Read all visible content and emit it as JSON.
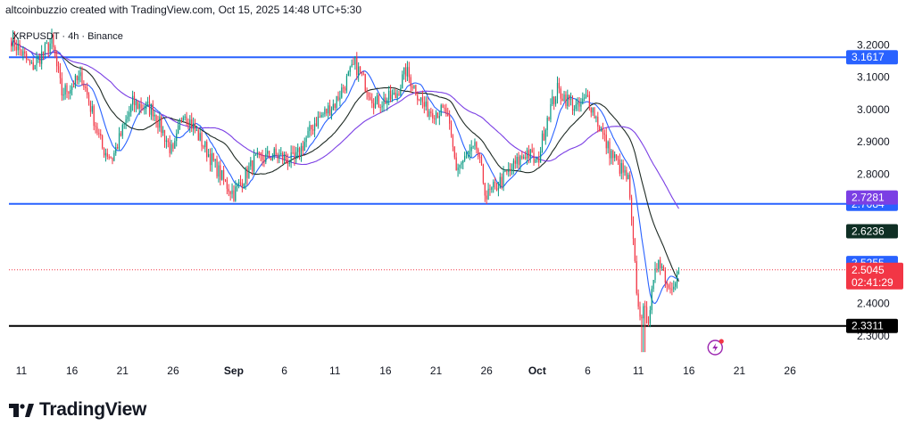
{
  "header": {
    "attribution": "altcoinbuzzio created with TradingView.com, Oct 15, 2025 14:48 UTC+5:30"
  },
  "symbol": "XRPUSDT · 4h · Binance",
  "branding": {
    "logo_text": "TradingView"
  },
  "colors": {
    "up": "#089981",
    "down": "#f23645",
    "ma_fast": "#2962ff",
    "ma_mid": "#1e2a24",
    "ma_slow": "#7b3fe4",
    "hline": "#2962ff",
    "support": "#000000",
    "last_price": "#f23645"
  },
  "chart_data": {
    "type": "candlestick",
    "ylim": [
      2.27,
      3.24
    ],
    "y_ticks": [
      "3.2000",
      "3.1000",
      "3.0000",
      "2.9000",
      "2.8000",
      "2.4000",
      "2.3000"
    ],
    "x_ticks": [
      {
        "label": "11",
        "bold": false
      },
      {
        "label": "16",
        "bold": false
      },
      {
        "label": "21",
        "bold": false
      },
      {
        "label": "26",
        "bold": false
      },
      {
        "label": "Sep",
        "bold": true
      },
      {
        "label": "6",
        "bold": false
      },
      {
        "label": "11",
        "bold": false
      },
      {
        "label": "16",
        "bold": false
      },
      {
        "label": "21",
        "bold": false
      },
      {
        "label": "26",
        "bold": false
      },
      {
        "label": "Oct",
        "bold": true
      },
      {
        "label": "6",
        "bold": false
      },
      {
        "label": "11",
        "bold": false
      },
      {
        "label": "16",
        "bold": false
      },
      {
        "label": "21",
        "bold": false
      },
      {
        "label": "26",
        "bold": false
      }
    ],
    "horizontal_lines": [
      {
        "value": 3.1617,
        "label": "3.1617",
        "style": "blue"
      },
      {
        "value": 2.7084,
        "label": "2.7084",
        "style": "blue"
      },
      {
        "value": 2.3311,
        "label": "2.3311",
        "style": "black"
      }
    ],
    "price_labels": [
      {
        "value": 2.7281,
        "label": "2.7281",
        "color": "#7b3fe4"
      },
      {
        "value": 2.6236,
        "label": "2.6236",
        "color": "#0f2f24"
      },
      {
        "value": 2.5255,
        "label": "2.5255",
        "color": "#2962ff"
      }
    ],
    "last_price": {
      "value": 2.5045,
      "label": "2.5045",
      "countdown": "02:41:29"
    },
    "price_path": [
      {
        "date": "Aug 10",
        "price": 3.22
      },
      {
        "date": "Aug 12",
        "price": 3.13
      },
      {
        "date": "Aug 14",
        "price": 3.21
      },
      {
        "date": "Aug 15",
        "price": 3.05
      },
      {
        "date": "Aug 17",
        "price": 3.1
      },
      {
        "date": "Aug 19",
        "price": 2.88
      },
      {
        "date": "Aug 20",
        "price": 2.85
      },
      {
        "date": "Aug 22",
        "price": 3.02
      },
      {
        "date": "Aug 24",
        "price": 3.0
      },
      {
        "date": "Aug 26",
        "price": 2.86
      },
      {
        "date": "Aug 27",
        "price": 3.0
      },
      {
        "date": "Aug 29",
        "price": 2.89
      },
      {
        "date": "Aug 31",
        "price": 2.78
      },
      {
        "date": "Sep 1",
        "price": 2.74
      },
      {
        "date": "Sep 3",
        "price": 2.84
      },
      {
        "date": "Sep 5",
        "price": 2.86
      },
      {
        "date": "Sep 7",
        "price": 2.84
      },
      {
        "date": "Sep 9",
        "price": 2.96
      },
      {
        "date": "Sep 11",
        "price": 3.02
      },
      {
        "date": "Sep 13",
        "price": 3.14
      },
      {
        "date": "Sep 15",
        "price": 3.02
      },
      {
        "date": "Sep 17",
        "price": 3.04
      },
      {
        "date": "Sep 18",
        "price": 3.12
      },
      {
        "date": "Sep 20",
        "price": 3.0
      },
      {
        "date": "Sep 22",
        "price": 2.99
      },
      {
        "date": "Sep 23",
        "price": 2.82
      },
      {
        "date": "Sep 25",
        "price": 2.88
      },
      {
        "date": "Sep 26",
        "price": 2.73
      },
      {
        "date": "Sep 28",
        "price": 2.8
      },
      {
        "date": "Sep 30",
        "price": 2.87
      },
      {
        "date": "Oct 1",
        "price": 2.83
      },
      {
        "date": "Oct 2",
        "price": 2.98
      },
      {
        "date": "Oct 3",
        "price": 3.06
      },
      {
        "date": "Oct 5",
        "price": 3.0
      },
      {
        "date": "Oct 6",
        "price": 3.04
      },
      {
        "date": "Oct 8",
        "price": 2.88
      },
      {
        "date": "Oct 9",
        "price": 2.83
      },
      {
        "date": "Oct 10",
        "price": 2.78
      },
      {
        "date": "Oct 11",
        "price": 2.38
      },
      {
        "date": "Oct 12",
        "price": 2.36
      },
      {
        "date": "Oct 13",
        "price": 2.55
      },
      {
        "date": "Oct 14",
        "price": 2.45
      },
      {
        "date": "Oct 15",
        "price": 2.5
      }
    ]
  }
}
